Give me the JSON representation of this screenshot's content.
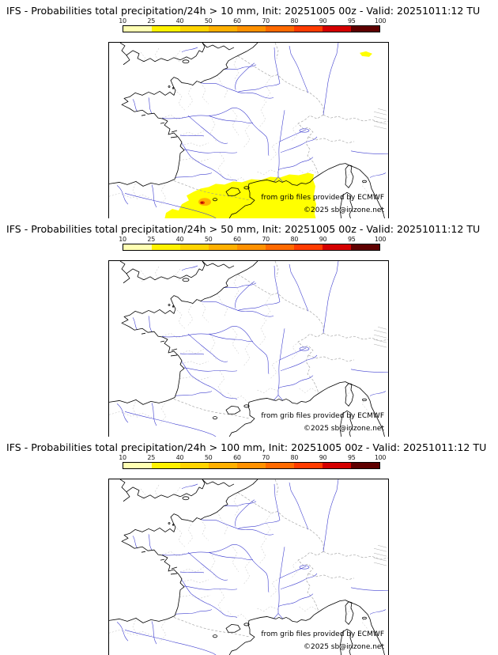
{
  "panels": [
    {
      "title": "IFS - Probabilities total precipitation/24h > 10 mm, Init: 20251005 00z - Valid: 20251011:12 TU",
      "threshold": "> 10 mm",
      "has_overlay": true,
      "overlay_note": "Yellow 10-25% area over far-southern France, northeast Spain and the western Mediterranean; small orange/red higher-probability core near the eastern Pyrenees; tiny yellow patch near northeastern map edge"
    },
    {
      "title": "IFS - Probabilities total precipitation/24h > 50 mm, Init: 20251005 00z - Valid: 20251011:12 TU",
      "threshold": "> 50 mm",
      "has_overlay": false,
      "overlay_note": "No shaded areas"
    },
    {
      "title": "IFS - Probabilities total precipitation/24h > 100 mm, Init: 20251005 00z - Valid: 20251011:12 TU",
      "threshold": "> 100 mm",
      "has_overlay": false,
      "overlay_note": "No shaded areas"
    }
  ],
  "colorbar": {
    "ticks": [
      "10",
      "25",
      "40",
      "50",
      "60",
      "70",
      "80",
      "90",
      "95",
      "100"
    ],
    "segment_colors": [
      "#ffffb3",
      "#fff200",
      "#ffd400",
      "#ffb000",
      "#ff9100",
      "#ff6a00",
      "#ff3c00",
      "#d40000",
      "#5f0000"
    ]
  },
  "attribution": {
    "provider": "from grib files provided by ECMWF",
    "copyright": "©2025 sb@irizone.net"
  },
  "map_style": {
    "coastline": "#000000",
    "rivers": "#4040d0",
    "admin_boundaries": "#bdbdbd",
    "country_borders": "#999999",
    "overlay_yellow": "#ffff00",
    "overlay_orange": "#ffb300",
    "overlay_red": "#e63000",
    "overlay_dark_red": "#7c0000",
    "background": "#ffffff"
  }
}
